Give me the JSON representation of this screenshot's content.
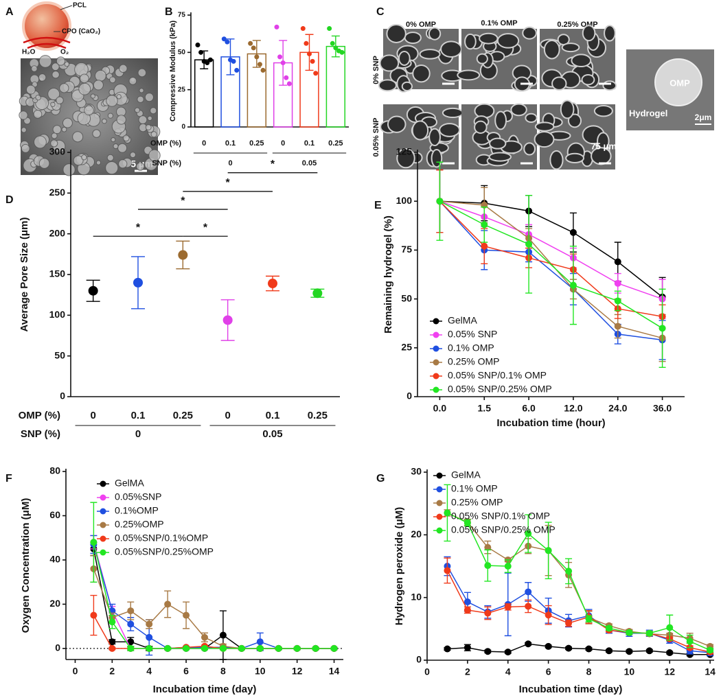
{
  "panel_a": {
    "label": "A",
    "shell": "PCL",
    "core": "CPO (CaO₂)",
    "left": "H₂O",
    "right": "O₂",
    "scale_bar": "5 μm"
  },
  "panel_c": {
    "label": "C",
    "columns": [
      "0% OMP",
      "0.1% OMP",
      "0.25% OMP"
    ],
    "rows": [
      "0% SNP",
      "0.05% SNP"
    ],
    "scale_bar": "75 μm",
    "inset": {
      "particle": "OMP",
      "matrix": "Hydrogel",
      "scale_bar": "2μm"
    }
  },
  "chart_data": [
    {
      "label": "B",
      "type": "bar",
      "y_label": "Compressive Modulus (kPa)",
      "categories": [
        "0",
        "0.1",
        "0.25",
        "0",
        "0.1",
        "0.25"
      ],
      "category_label": "OMP (%)",
      "groups": [
        "0",
        "0.05"
      ],
      "group_label": "SNP (%)",
      "values": [
        45,
        47,
        49,
        43,
        50,
        54
      ],
      "errors": [
        6,
        12,
        9,
        15,
        12,
        7
      ],
      "colors": [
        "#000000",
        "#1f4fe0",
        "#9b6a2f",
        "#e040e8",
        "#f03a1a",
        "#22d622"
      ],
      "points": [
        [
          55,
          50,
          44,
          43,
          45
        ],
        [
          59,
          57,
          45,
          44,
          38
        ],
        [
          56,
          53,
          47,
          42,
          38
        ],
        [
          67,
          47,
          43,
          33,
          29
        ],
        [
          66,
          56,
          49,
          44,
          36
        ],
        [
          66,
          56,
          53,
          51,
          50
        ]
      ],
      "ylim": [
        0,
        75
      ],
      "yticks": [
        0,
        25,
        50,
        75
      ]
    },
    {
      "label": "D",
      "type": "dot",
      "y_label": "Average Pore Size (μm)",
      "categories": [
        "0",
        "0.1",
        "0.25",
        "0",
        "0.1",
        "0.25"
      ],
      "category_label": "OMP (%)",
      "groups": [
        "0",
        "0.05"
      ],
      "group_label": "SNP (%)",
      "values": [
        130,
        140,
        174,
        94,
        139,
        127
      ],
      "errors": [
        13,
        32,
        17,
        25,
        9,
        5
      ],
      "colors": [
        "#000000",
        "#1f4fe0",
        "#9b6a2f",
        "#e040e8",
        "#f03a1a",
        "#22d622"
      ],
      "significance": [
        {
          "from": 0,
          "to": 2,
          "label": "*"
        },
        {
          "from": 2,
          "to": 3,
          "label": "*"
        },
        {
          "from": 1,
          "to": 3,
          "label": "*"
        },
        {
          "from": 2,
          "to": 4,
          "label": "*"
        },
        {
          "from": 3,
          "to": 5,
          "label": "*"
        }
      ],
      "ylim": [
        0,
        300
      ],
      "yticks": [
        0,
        50,
        100,
        150,
        200,
        250,
        300
      ]
    },
    {
      "label": "E",
      "type": "line",
      "x_label": "Incubation time (hour)",
      "y_label": "Remaining hydrogel (%)",
      "categories": [
        "0.0",
        "1.5",
        "6.0",
        "12.0",
        "24.0",
        "36.0"
      ],
      "ylim": [
        0,
        125
      ],
      "yticks": [
        0,
        25,
        50,
        75,
        100,
        125
      ],
      "legend": "lower left",
      "series": [
        {
          "name": "GelMA",
          "color": "#000000",
          "values": [
            100,
            99,
            95,
            84,
            69,
            51
          ],
          "errors": [
            16,
            9,
            8,
            10,
            10,
            10
          ]
        },
        {
          "name": "0.05% SNP",
          "color": "#f040f0",
          "values": [
            100,
            92,
            83,
            71,
            58,
            50
          ],
          "errors": [
            16,
            5,
            5,
            5,
            5,
            10
          ]
        },
        {
          "name": "0.1% OMP",
          "color": "#1f4fe0",
          "values": [
            100,
            75,
            74,
            55,
            32,
            29
          ],
          "errors": [
            16,
            10,
            5,
            8,
            5,
            10
          ]
        },
        {
          "name": "0.25% OMP",
          "color": "#a87a45",
          "values": [
            100,
            98,
            81,
            55,
            36,
            30
          ],
          "errors": [
            16,
            9,
            5,
            5,
            6,
            12
          ]
        },
        {
          "name": "0.05% SNP/0.1% OMP",
          "color": "#f03a1a",
          "values": [
            100,
            77,
            71,
            65,
            45,
            41
          ],
          "errors": [
            16,
            9,
            5,
            8,
            5,
            6
          ]
        },
        {
          "name": "0.05% SNP/0.25% OMP",
          "color": "#22e622",
          "values": [
            100,
            88,
            78,
            57,
            49,
            35
          ],
          "errors": [
            20,
            9,
            25,
            20,
            5,
            20
          ]
        }
      ]
    },
    {
      "label": "F",
      "type": "line",
      "x_label": "Incubation time (day)",
      "y_label": "Oxygen Concentration (μM)",
      "x": [
        1,
        2,
        3,
        4,
        5,
        6,
        7,
        8,
        9,
        10,
        11,
        12,
        13,
        14
      ],
      "xlim": [
        -0.5,
        14.5
      ],
      "xticks": [
        0,
        2,
        4,
        6,
        8,
        10,
        12,
        14
      ],
      "ylim": [
        -5,
        80
      ],
      "yticks": [
        0,
        20,
        40,
        60,
        80
      ],
      "zero_line": true,
      "legend": "upper left",
      "series": [
        {
          "name": "GelMA",
          "color": "#000000",
          "values": [
            45,
            3,
            3,
            0,
            0,
            0,
            0,
            6,
            0,
            0,
            0,
            0,
            0,
            0
          ],
          "errors": [
            3,
            1,
            2,
            1,
            0.5,
            0.5,
            0.5,
            11,
            0.5,
            0.5,
            0.5,
            0.5,
            0.5,
            0.5
          ]
        },
        {
          "name": "0.05%SNP",
          "color": "#f040f0",
          "values": [
            48,
            17,
            0,
            0,
            0,
            0,
            0,
            0,
            0,
            0,
            0,
            0,
            0,
            0
          ],
          "errors": [
            3,
            2,
            1,
            0.5,
            0.5,
            0.5,
            0.5,
            0.5,
            0.5,
            0.5,
            0.5,
            0.5,
            0.5,
            0.5
          ]
        },
        {
          "name": "0.1%OMP",
          "color": "#1f4fe0",
          "values": [
            47,
            17,
            11,
            5,
            0,
            0.5,
            0.5,
            0.5,
            0,
            3,
            0,
            0,
            0,
            0
          ],
          "errors": [
            4,
            3,
            3,
            8,
            0.5,
            0.5,
            0.5,
            0.5,
            0.5,
            4,
            0.5,
            0.5,
            0.5,
            0.5
          ]
        },
        {
          "name": "0.25%OMP",
          "color": "#a87a45",
          "values": [
            36,
            14,
            17,
            11,
            20,
            15,
            5,
            1,
            0,
            0,
            0,
            0,
            0,
            0
          ],
          "errors": [
            6,
            2,
            4,
            2,
            6,
            6,
            2,
            1,
            0.5,
            0.5,
            0.5,
            0.5,
            0.5,
            0.5
          ]
        },
        {
          "name": "0.05%SNP/0.1%OMP",
          "color": "#f03a1a",
          "values": [
            15,
            0,
            0,
            0,
            0,
            0.5,
            1,
            0,
            0,
            0,
            0,
            0,
            0,
            0
          ],
          "errors": [
            9,
            0.5,
            0.5,
            0.5,
            0.5,
            0.5,
            0.5,
            0.5,
            0.5,
            0.5,
            0.5,
            0.5,
            0.5,
            0.5
          ]
        },
        {
          "name": "0.05%SNP/0.25%OMP",
          "color": "#22e622",
          "values": [
            48,
            12,
            0,
            0,
            0,
            0,
            0,
            0,
            0,
            0,
            0,
            0,
            0,
            0
          ],
          "errors": [
            18,
            3,
            1,
            0.5,
            0.5,
            0.5,
            0.5,
            0.5,
            0.5,
            0.5,
            0.5,
            0.5,
            0.5,
            0.5
          ]
        }
      ]
    },
    {
      "label": "G",
      "type": "line",
      "x_label": "Incubation time (day)",
      "y_label": "Hydrogen peroxide (μM)",
      "x": [
        1,
        2,
        3,
        4,
        5,
        6,
        7,
        8,
        9,
        10,
        11,
        12,
        13,
        14
      ],
      "xlim": [
        0,
        14.2
      ],
      "xticks": [
        0,
        2,
        4,
        6,
        8,
        10,
        12,
        14
      ],
      "ylim": [
        0,
        30
      ],
      "yticks": [
        0,
        10,
        20,
        30
      ],
      "legend": "upper left",
      "series": [
        {
          "name": "GelMA",
          "color": "#000000",
          "values": [
            1.8,
            2.0,
            1.4,
            1.3,
            2.6,
            2.2,
            1.9,
            1.8,
            1.5,
            1.4,
            1.5,
            1.2,
            0.9,
            0.9
          ],
          "errors": [
            0.2,
            0.5,
            0.2,
            0.2,
            0.2,
            0.2,
            0.2,
            0.2,
            0.2,
            0.2,
            0.2,
            0.2,
            0.2,
            0.2
          ]
        },
        {
          "name": "0.1% OMP",
          "color": "#1f4fe0",
          "values": [
            15,
            9.3,
            7.7,
            8.9,
            10.9,
            7.9,
            6.3,
            7.1,
            4.8,
            4.3,
            4.3,
            3.2,
            1.5,
            1.2
          ],
          "errors": [
            1.5,
            1.5,
            1,
            5,
            1.5,
            2,
            1,
            1,
            0.5,
            0.5,
            0.5,
            0.5,
            0.5,
            0.5
          ]
        },
        {
          "name": "0.25% OMP",
          "color": "#a87a45",
          "values": [
            23.5,
            22,
            18,
            16,
            18.2,
            17.5,
            13.6,
            6.8,
            5.5,
            4.6,
            4.2,
            4.0,
            3.5,
            2.2
          ],
          "errors": [
            0.5,
            0.5,
            1,
            0.3,
            1.2,
            4,
            2,
            1,
            0.3,
            0.3,
            0.3,
            0.3,
            0.8,
            0.3
          ]
        },
        {
          "name": "0.05% SNP/0.1% OMP",
          "color": "#f03a1a",
          "values": [
            14.3,
            8,
            7.5,
            8.5,
            8.6,
            7.2,
            5.9,
            6.9,
            4.8,
            4.4,
            4.3,
            3.4,
            2.0,
            1.3
          ],
          "errors": [
            2,
            0.5,
            1,
            0.5,
            1,
            1.5,
            0.5,
            1,
            0.3,
            0.3,
            0.3,
            0.3,
            0.3,
            0.3
          ]
        },
        {
          "name": "0.05% SNP/0.25% OMP",
          "color": "#22e622",
          "values": [
            23.5,
            21.9,
            15.1,
            15,
            20.2,
            17.5,
            14.2,
            6.6,
            5.1,
            4.4,
            4.3,
            5.2,
            3.0,
            1.6
          ],
          "errors": [
            4.5,
            0.5,
            2.5,
            1,
            3,
            4.5,
            2,
            0.5,
            0.3,
            0.3,
            0.3,
            2,
            1,
            0.3
          ]
        }
      ]
    }
  ]
}
